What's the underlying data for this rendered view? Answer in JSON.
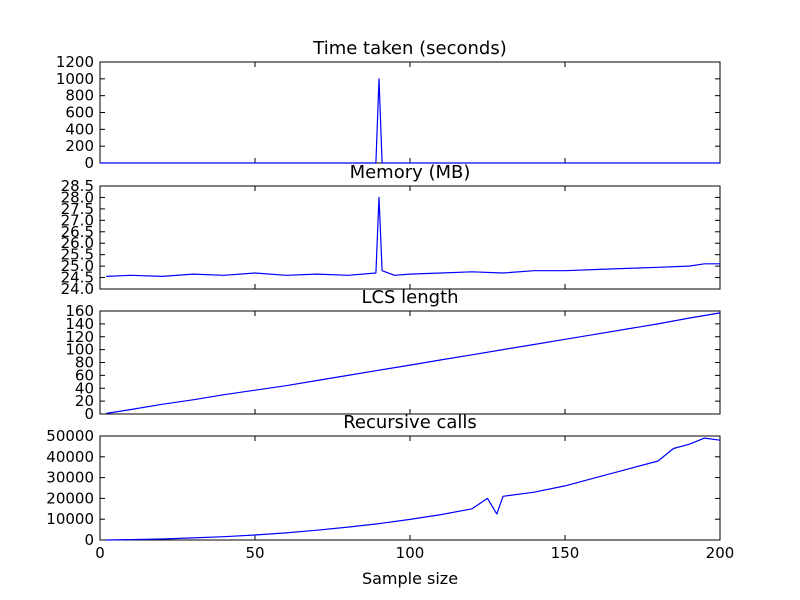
{
  "figure": {
    "xlabel": "Sample size",
    "xlim": [
      0,
      200
    ],
    "xticks": [
      "0",
      "50",
      "100",
      "150",
      "200"
    ],
    "line_color": "#0000ff"
  },
  "chart_data": [
    {
      "type": "line",
      "title": "Time taken (seconds)",
      "ylim": [
        0,
        1200
      ],
      "yticks": [
        "0",
        "200",
        "400",
        "600",
        "800",
        "1000",
        "1200"
      ],
      "series": [
        {
          "x": [
            0,
            89,
            90,
            91,
            200
          ],
          "values": [
            0,
            0,
            1000,
            0,
            0
          ]
        }
      ]
    },
    {
      "type": "line",
      "title": "Memory (MB)",
      "ylim": [
        24.0,
        28.5
      ],
      "yticks": [
        "24.0",
        "24.5",
        "25.0",
        "25.5",
        "26.0",
        "26.5",
        "27.0",
        "27.5",
        "28.0",
        "28.5"
      ],
      "series": [
        {
          "x": [
            2,
            10,
            20,
            30,
            40,
            50,
            60,
            70,
            80,
            89,
            90,
            91,
            95,
            100,
            110,
            120,
            130,
            140,
            150,
            160,
            170,
            180,
            190,
            195,
            200
          ],
          "values": [
            24.55,
            24.6,
            24.55,
            24.65,
            24.6,
            24.7,
            24.6,
            24.65,
            24.6,
            24.7,
            28.0,
            24.8,
            24.6,
            24.65,
            24.7,
            24.75,
            24.7,
            24.8,
            24.8,
            24.85,
            24.9,
            24.95,
            25.0,
            25.1,
            25.1
          ]
        }
      ]
    },
    {
      "type": "line",
      "title": "LCS length",
      "ylim": [
        0,
        160
      ],
      "yticks": [
        "0",
        "20",
        "40",
        "60",
        "80",
        "100",
        "120",
        "140",
        "160"
      ],
      "series": [
        {
          "x": [
            2,
            10,
            20,
            30,
            40,
            50,
            60,
            70,
            80,
            90,
            100,
            110,
            120,
            130,
            140,
            150,
            160,
            170,
            180,
            190,
            200
          ],
          "values": [
            1,
            7,
            15,
            22,
            30,
            37,
            44,
            52,
            60,
            68,
            76,
            84,
            92,
            100,
            108,
            116,
            124,
            132,
            140,
            149,
            157
          ]
        }
      ]
    },
    {
      "type": "line",
      "title": "Recursive calls",
      "ylim": [
        0,
        50000
      ],
      "yticks": [
        "0",
        "10000",
        "20000",
        "30000",
        "40000",
        "50000"
      ],
      "series": [
        {
          "x": [
            2,
            10,
            20,
            30,
            40,
            50,
            60,
            70,
            80,
            90,
            100,
            110,
            120,
            125,
            128,
            130,
            140,
            150,
            160,
            170,
            180,
            185,
            190,
            195,
            200
          ],
          "values": [
            0,
            200,
            500,
            1000,
            1600,
            2400,
            3400,
            4700,
            6200,
            7900,
            9900,
            12200,
            15000,
            20000,
            12500,
            21000,
            23000,
            26000,
            30000,
            34000,
            38000,
            44000,
            46000,
            49000,
            48000
          ]
        }
      ]
    }
  ]
}
